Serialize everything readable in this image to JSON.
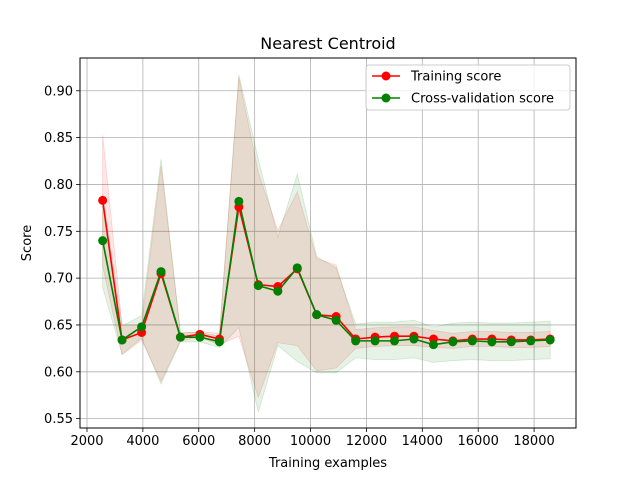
{
  "chart_data": {
    "type": "line",
    "title": "Nearest Centroid",
    "xlabel": "Training examples",
    "ylabel": "Score",
    "xlim": [
      1750,
      19500
    ],
    "ylim": [
      0.54,
      0.935
    ],
    "xticks": [
      2000,
      4000,
      6000,
      8000,
      10000,
      12000,
      14000,
      16000,
      18000
    ],
    "yticks": [
      0.55,
      0.6,
      0.65,
      0.7,
      0.75,
      0.8,
      0.85,
      0.9
    ],
    "grid": true,
    "legend_position": "top-right",
    "x": [
      2560,
      3255,
      3955,
      4650,
      5345,
      6040,
      6740,
      7435,
      8130,
      8830,
      9525,
      10220,
      10915,
      11615,
      12310,
      13005,
      13700,
      14400,
      15095,
      15790,
      16490,
      17185,
      17880,
      18575
    ],
    "series": [
      {
        "name": "Training score",
        "color": "#ff0000",
        "fill_color": "#ff0000",
        "values": [
          0.783,
          0.634,
          0.642,
          0.705,
          0.637,
          0.64,
          0.635,
          0.776,
          0.693,
          0.691,
          0.71,
          0.661,
          0.659,
          0.635,
          0.637,
          0.638,
          0.638,
          0.635,
          0.633,
          0.635,
          0.635,
          0.634,
          0.634,
          0.635
        ],
        "std": [
          0.07,
          0.016,
          0.008,
          0.115,
          0.004,
          0.003,
          0.006,
          0.138,
          0.12,
          0.06,
          0.082,
          0.06,
          0.055,
          0.01,
          0.01,
          0.01,
          0.01,
          0.009,
          0.008,
          0.008,
          0.008,
          0.008,
          0.008,
          0.008
        ]
      },
      {
        "name": "Cross-validation score",
        "color": "#008000",
        "fill_color": "#008000",
        "values": [
          0.74,
          0.634,
          0.648,
          0.707,
          0.637,
          0.637,
          0.632,
          0.782,
          0.692,
          0.686,
          0.711,
          0.661,
          0.655,
          0.633,
          0.633,
          0.633,
          0.635,
          0.629,
          0.632,
          0.633,
          0.632,
          0.632,
          0.633,
          0.634
        ],
        "std": [
          0.05,
          0.015,
          0.012,
          0.12,
          0.005,
          0.005,
          0.006,
          0.135,
          0.135,
          0.058,
          0.1,
          0.062,
          0.056,
          0.018,
          0.02,
          0.02,
          0.02,
          0.019,
          0.02,
          0.02,
          0.02,
          0.02,
          0.02,
          0.02
        ]
      }
    ]
  }
}
